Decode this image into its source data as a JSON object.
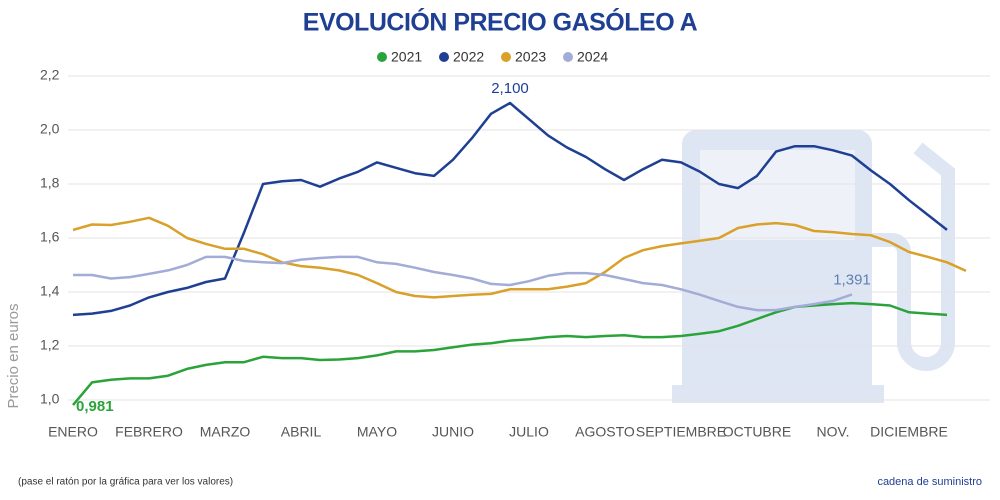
{
  "chart_data": {
    "type": "line",
    "title": "EVOLUCIÓN PRECIO GASÓLEO A",
    "y_label": "Precio en euros",
    "note": "(pase el ratón por la gráfica para ver los valores)",
    "brand": "cadena de suministro",
    "grid": true,
    "legend": "top",
    "categories": [
      "ENERO",
      null,
      null,
      null,
      "FEBRERO",
      null,
      null,
      null,
      "MARZO",
      null,
      null,
      null,
      "ABRIL",
      null,
      null,
      null,
      "MAYO",
      null,
      null,
      null,
      "JUNIO",
      null,
      null,
      null,
      "JULIO",
      null,
      null,
      null,
      "AGOSTO",
      null,
      null,
      null,
      "SEPTIEMBRE",
      null,
      null,
      null,
      "OCTUBRE",
      null,
      null,
      null,
      "NOV.",
      null,
      null,
      null,
      "DICIEMBRE",
      null,
      null,
      null
    ],
    "ylim": [
      0.95,
      2.25
    ],
    "yticks": [
      {
        "value": 1.0,
        "label": "1,0"
      },
      {
        "value": 1.2,
        "label": "1,2"
      },
      {
        "value": 1.4,
        "label": "1,4"
      },
      {
        "value": 1.6,
        "label": "1,6"
      },
      {
        "value": 1.8,
        "label": "1,8"
      },
      {
        "value": 2.0,
        "label": "2,0"
      },
      {
        "value": 2.2,
        "label": "2,2"
      }
    ],
    "series": [
      {
        "name": "2021",
        "color": "#2aa33a",
        "values": [
          0.981,
          1.065,
          1.075,
          1.08,
          1.08,
          1.09,
          1.115,
          1.13,
          1.14,
          1.14,
          1.16,
          1.155,
          1.155,
          1.148,
          1.15,
          1.155,
          1.165,
          1.18,
          1.18,
          1.185,
          1.195,
          1.205,
          1.21,
          1.22,
          1.225,
          1.233,
          1.237,
          1.233,
          1.237,
          1.24,
          1.233,
          1.233,
          1.237,
          1.245,
          1.255,
          1.275,
          1.3,
          1.325,
          1.345,
          1.35,
          1.355,
          1.359,
          1.355,
          1.35,
          1.325,
          1.32,
          1.315,
          null
        ],
        "value_labels": [
          "0,981",
          null,
          null,
          null,
          null,
          null,
          null,
          null,
          null,
          null,
          null,
          null,
          null,
          null,
          null,
          null,
          null,
          null,
          null,
          null,
          null,
          null,
          null,
          null,
          null,
          null,
          null,
          null,
          null,
          null,
          null,
          null,
          null,
          null,
          null,
          null,
          null,
          null,
          null,
          null,
          null,
          null,
          null,
          null,
          null,
          null,
          null,
          null
        ]
      },
      {
        "name": "2022",
        "color": "#1f3f93",
        "values": [
          1.315,
          1.32,
          1.33,
          1.35,
          1.38,
          1.4,
          1.415,
          1.437,
          1.45,
          1.62,
          1.8,
          1.81,
          1.815,
          1.79,
          1.82,
          1.845,
          1.88,
          1.86,
          1.84,
          1.83,
          1.89,
          1.97,
          2.06,
          2.1,
          2.04,
          1.98,
          1.935,
          1.9,
          1.855,
          1.815,
          1.855,
          1.89,
          1.88,
          1.845,
          1.8,
          1.785,
          1.83,
          1.92,
          1.94,
          1.94,
          1.925,
          1.905,
          1.85,
          1.8,
          1.74,
          1.685,
          1.63,
          null
        ],
        "value_labels": [
          null,
          null,
          null,
          null,
          null,
          null,
          null,
          null,
          null,
          null,
          null,
          null,
          null,
          null,
          null,
          null,
          null,
          null,
          null,
          null,
          null,
          null,
          null,
          "2,100",
          null,
          null,
          null,
          null,
          null,
          null,
          null,
          null,
          null,
          null,
          null,
          null,
          null,
          null,
          null,
          null,
          null,
          null,
          null,
          null,
          null,
          null,
          null,
          null
        ]
      },
      {
        "name": "2023",
        "color": "#d9a02a",
        "values": [
          1.63,
          1.65,
          1.648,
          1.66,
          1.675,
          1.645,
          1.6,
          1.578,
          1.56,
          1.56,
          1.54,
          1.51,
          1.496,
          1.49,
          1.48,
          1.463,
          1.433,
          1.4,
          1.385,
          1.38,
          1.385,
          1.39,
          1.393,
          1.41,
          1.41,
          1.41,
          1.42,
          1.433,
          1.474,
          1.526,
          1.555,
          1.57,
          1.58,
          1.59,
          1.6,
          1.637,
          1.65,
          1.655,
          1.648,
          1.626,
          1.622,
          1.615,
          1.61,
          1.585,
          1.548,
          1.53,
          1.51,
          1.478
        ]
      },
      {
        "name": "2024",
        "color": "#a3acd6",
        "values": [
          1.463,
          1.463,
          1.45,
          1.455,
          1.467,
          1.48,
          1.5,
          1.53,
          1.53,
          1.515,
          1.51,
          1.507,
          1.52,
          1.526,
          1.53,
          1.53,
          1.51,
          1.504,
          1.49,
          1.474,
          1.463,
          1.45,
          1.43,
          1.426,
          1.44,
          1.46,
          1.47,
          1.47,
          1.463,
          1.448,
          1.433,
          1.426,
          1.41,
          1.39,
          1.367,
          1.345,
          1.333,
          1.333,
          1.345,
          1.355,
          1.367,
          1.391,
          null,
          null,
          null,
          null,
          null,
          null
        ],
        "value_labels": [
          null,
          null,
          null,
          null,
          null,
          null,
          null,
          null,
          null,
          null,
          null,
          null,
          null,
          null,
          null,
          null,
          null,
          null,
          null,
          null,
          null,
          null,
          null,
          null,
          null,
          null,
          null,
          null,
          null,
          null,
          null,
          null,
          null,
          null,
          null,
          null,
          null,
          null,
          null,
          null,
          null,
          "1,391",
          null,
          null,
          null,
          null,
          null,
          null
        ]
      }
    ]
  }
}
